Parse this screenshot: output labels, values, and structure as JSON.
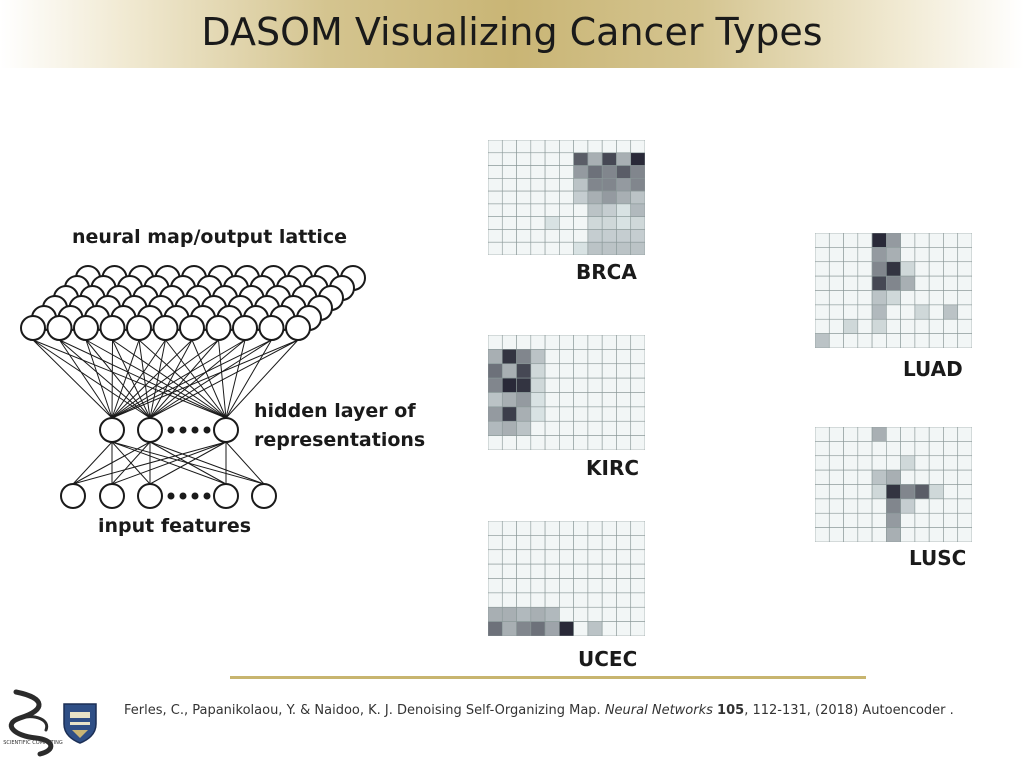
{
  "slide": {
    "title": "DASOM Visualizing Cancer Types"
  },
  "network": {
    "output_label": "neural map/output lattice",
    "hidden_label_line1": "hidden layer of",
    "hidden_label_line2": "representations",
    "input_label": "input features"
  },
  "heatmaps": [
    {
      "id": "BRCA",
      "label": "BRCA",
      "cells": [
        [
          0,
          0,
          0,
          0,
          0,
          0,
          0,
          0,
          0,
          0,
          0
        ],
        [
          0,
          0,
          0,
          0,
          0,
          0,
          0.7,
          0.3,
          0.8,
          0.3,
          0.95
        ],
        [
          0,
          0,
          0,
          0,
          0,
          0,
          0.4,
          0.6,
          0.5,
          0.7,
          0.5
        ],
        [
          0,
          0,
          0,
          0,
          0,
          0,
          0.2,
          0.5,
          0.5,
          0.4,
          0.5
        ],
        [
          0,
          0,
          0,
          0,
          0,
          0,
          0.15,
          0.3,
          0.4,
          0.3,
          0.2
        ],
        [
          0,
          0,
          0,
          0,
          0,
          0,
          0,
          0.2,
          0.15,
          0.05,
          0.25
        ],
        [
          0,
          0,
          0,
          0,
          0.05,
          0,
          0,
          0.1,
          0.1,
          0.05,
          0.1
        ],
        [
          0,
          0,
          0,
          0,
          0,
          0,
          0,
          0.15,
          0.15,
          0.15,
          0.15
        ],
        [
          0,
          0,
          0,
          0,
          0,
          0,
          0.05,
          0.2,
          0.2,
          0.2,
          0.2
        ]
      ]
    },
    {
      "id": "KIRC",
      "label": "KIRC",
      "cells": [
        [
          0,
          0,
          0,
          0,
          0,
          0,
          0,
          0,
          0,
          0,
          0
        ],
        [
          0.3,
          0.9,
          0.5,
          0.2,
          0,
          0,
          0,
          0,
          0,
          0,
          0
        ],
        [
          0.6,
          0.3,
          0.8,
          0.1,
          0,
          0,
          0,
          0,
          0,
          0,
          0
        ],
        [
          0.5,
          0.95,
          0.9,
          0.1,
          0,
          0,
          0,
          0,
          0,
          0,
          0
        ],
        [
          0.2,
          0.3,
          0.4,
          0.05,
          0,
          0,
          0,
          0,
          0,
          0,
          0
        ],
        [
          0.4,
          0.85,
          0.3,
          0.05,
          0,
          0,
          0,
          0,
          0,
          0,
          0
        ],
        [
          0.25,
          0.3,
          0.2,
          0,
          0,
          0,
          0,
          0,
          0,
          0,
          0
        ],
        [
          0,
          0,
          0,
          0,
          0,
          0,
          0,
          0,
          0,
          0,
          0
        ]
      ]
    },
    {
      "id": "UCEC",
      "label": "UCEC",
      "cells": [
        [
          0,
          0,
          0,
          0,
          0,
          0,
          0,
          0,
          0,
          0,
          0
        ],
        [
          0,
          0,
          0,
          0,
          0,
          0,
          0,
          0,
          0,
          0,
          0
        ],
        [
          0,
          0,
          0,
          0,
          0,
          0,
          0,
          0,
          0,
          0,
          0
        ],
        [
          0,
          0,
          0,
          0,
          0,
          0,
          0,
          0,
          0,
          0,
          0
        ],
        [
          0,
          0,
          0,
          0,
          0,
          0,
          0,
          0,
          0,
          0,
          0
        ],
        [
          0,
          0,
          0,
          0,
          0,
          0,
          0,
          0,
          0,
          0,
          0
        ],
        [
          0.3,
          0.3,
          0.25,
          0.3,
          0.25,
          0,
          0,
          0,
          0,
          0,
          0
        ],
        [
          0.6,
          0.3,
          0.5,
          0.6,
          0.35,
          0.95,
          0,
          0.2,
          0,
          0,
          0
        ]
      ]
    },
    {
      "id": "LUAD",
      "label": "LUAD",
      "cells": [
        [
          0,
          0,
          0,
          0,
          0.95,
          0.4,
          0,
          0,
          0,
          0,
          0
        ],
        [
          0,
          0,
          0,
          0,
          0.4,
          0.3,
          0,
          0,
          0,
          0,
          0
        ],
        [
          0,
          0,
          0,
          0,
          0.5,
          0.9,
          0.1,
          0,
          0,
          0,
          0
        ],
        [
          0,
          0,
          0,
          0,
          0.8,
          0.5,
          0.3,
          0,
          0,
          0,
          0
        ],
        [
          0,
          0,
          0,
          0,
          0.2,
          0.1,
          0,
          0,
          0,
          0,
          0
        ],
        [
          0,
          0,
          0,
          0,
          0.25,
          0,
          0,
          0.1,
          0,
          0.2,
          0
        ],
        [
          0,
          0,
          0.1,
          0,
          0.1,
          0,
          0,
          0,
          0,
          0,
          0
        ],
        [
          0.2,
          0,
          0,
          0,
          0,
          0,
          0,
          0,
          0,
          0,
          0
        ]
      ]
    },
    {
      "id": "LUSC",
      "label": "LUSC",
      "cells": [
        [
          0,
          0,
          0,
          0,
          0.3,
          0,
          0,
          0,
          0,
          0,
          0
        ],
        [
          0,
          0,
          0,
          0,
          0,
          0,
          0,
          0,
          0,
          0,
          0
        ],
        [
          0,
          0,
          0,
          0,
          0,
          0,
          0.1,
          0,
          0,
          0,
          0
        ],
        [
          0,
          0,
          0,
          0,
          0.2,
          0.3,
          0,
          0,
          0,
          0,
          0
        ],
        [
          0,
          0,
          0,
          0,
          0.1,
          0.9,
          0.5,
          0.7,
          0.1,
          0,
          0
        ],
        [
          0,
          0,
          0,
          0,
          0,
          0.5,
          0.15,
          0,
          0,
          0,
          0
        ],
        [
          0,
          0,
          0,
          0,
          0,
          0.4,
          0,
          0,
          0,
          0,
          0
        ],
        [
          0,
          0,
          0,
          0,
          0,
          0.3,
          0,
          0,
          0,
          0,
          0
        ]
      ]
    }
  ],
  "citation": {
    "authors": "Ferles, C., Papanikolaou, Y. & Naidoo, K. J. Denoising Self-Organizing Map.",
    "journal": "Neural Networks",
    "volume": "105",
    "rest": ",  112-131, (2018) Autoencoder ."
  },
  "logos": {
    "scientific_computing_text": "SCIENTIFIC COMPUTING"
  },
  "colors": {
    "title_band": "#c9b575",
    "rule": "#c8b56f",
    "cell_empty": "#f2f6f6",
    "cell_grid": "#8a9898",
    "cell_dark": "#1f1f2e"
  }
}
